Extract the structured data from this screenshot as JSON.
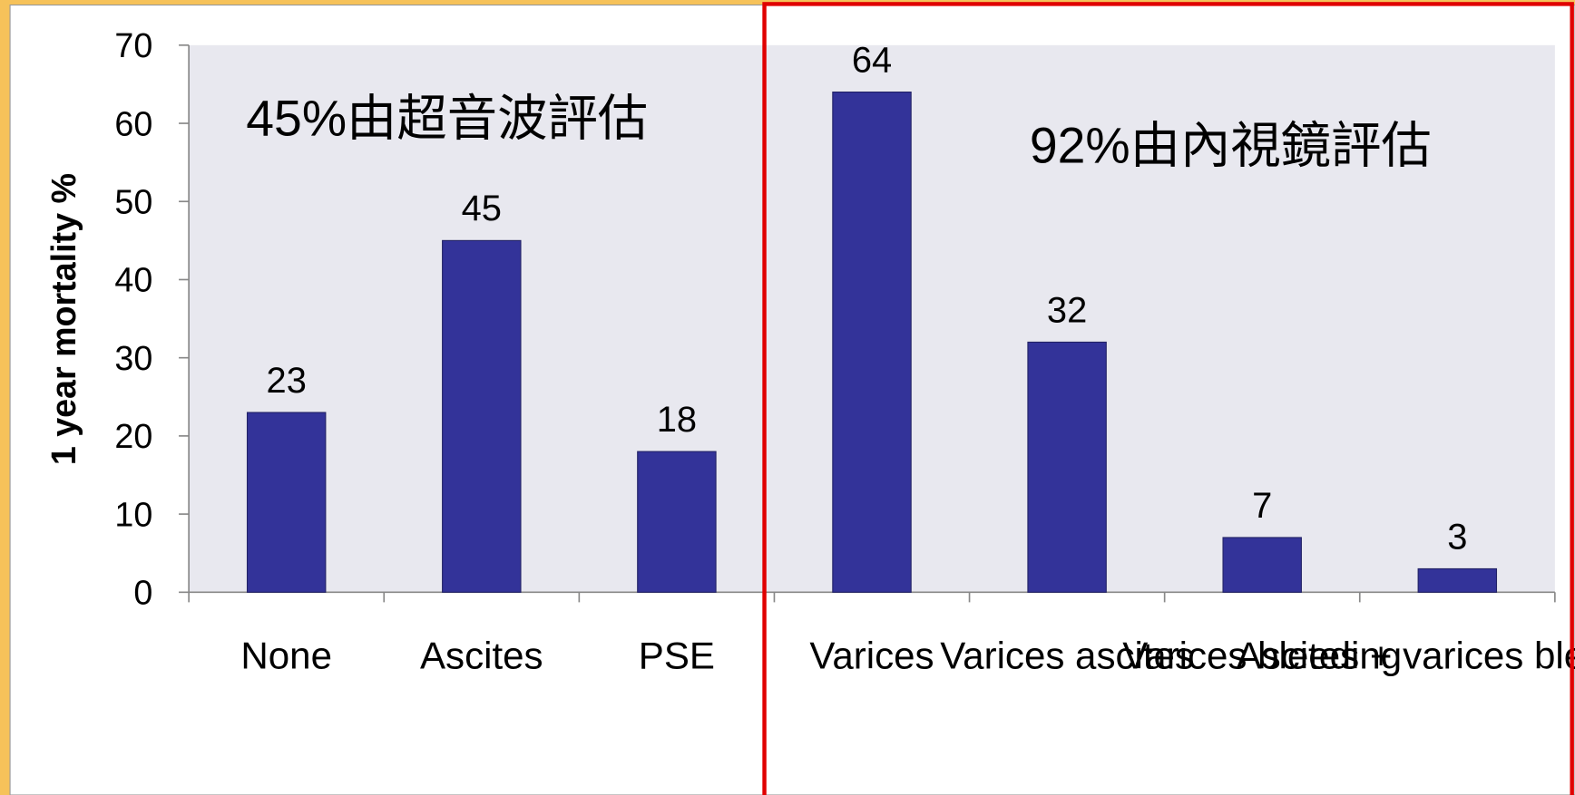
{
  "chart_data": {
    "type": "bar",
    "y_label": "1 year  mortality %",
    "annotations": [
      "45%由超音波評估",
      "92%由內視鏡評估"
    ],
    "categories": [
      "None",
      "Ascites",
      "PSE",
      "Varices",
      "Varices ascites",
      "Varices bleeding",
      "Ascites + varices bleeding"
    ],
    "values": [
      23,
      45,
      18,
      64,
      32,
      7,
      3
    ],
    "color": "#333399",
    "ylim": [
      0,
      70
    ],
    "yticks": [
      0,
      10,
      20,
      30,
      40,
      50,
      60,
      70
    ],
    "grid": false
  }
}
